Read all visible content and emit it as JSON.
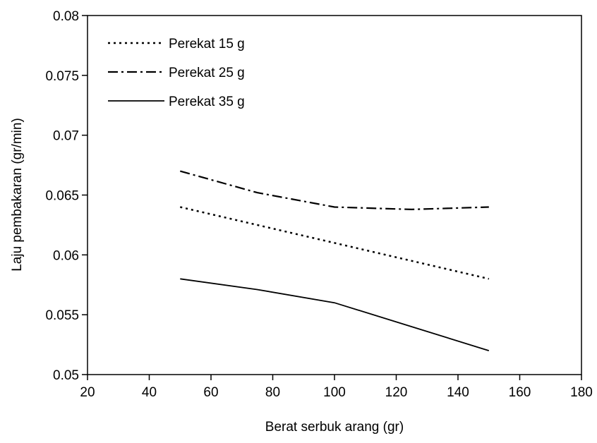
{
  "chart_data": {
    "type": "line",
    "title": "",
    "xlabel": "Berat serbuk arang (gr)",
    "ylabel": "Laju pembakaran (gr/min)",
    "xlim": [
      20,
      180
    ],
    "ylim": [
      0.05,
      0.08
    ],
    "x_ticks": [
      "20",
      "40",
      "60",
      "80",
      "100",
      "120",
      "140",
      "160",
      "180"
    ],
    "y_ticks": [
      "0.05",
      "0.055",
      "0.06",
      "0.065",
      "0.07",
      "0.075",
      "0.08"
    ],
    "grid": false,
    "legend_position": "top-left",
    "x": [
      50,
      75,
      100,
      125,
      150
    ],
    "series": [
      {
        "name": "Perekat 15 g",
        "style": "dotted",
        "color": "#000000",
        "values": [
          0.064,
          0.0625,
          0.061,
          0.0595,
          0.058
        ]
      },
      {
        "name": "Perekat 25 g",
        "style": "dash-dot",
        "color": "#000000",
        "values": [
          0.067,
          0.0652,
          0.064,
          0.0638,
          0.064
        ]
      },
      {
        "name": "Perekat 35 g",
        "style": "solid",
        "color": "#000000",
        "values": [
          0.058,
          0.0571,
          0.056,
          0.054,
          0.052
        ]
      }
    ]
  }
}
